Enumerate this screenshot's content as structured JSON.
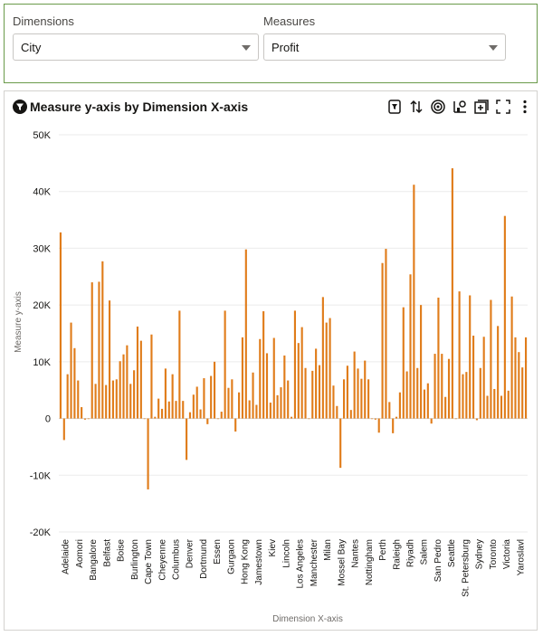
{
  "filters": {
    "dimension": {
      "label": "Dimensions",
      "value": "City"
    },
    "measure": {
      "label": "Measures",
      "value": "Profit"
    }
  },
  "chart_panel": {
    "title": "Measure y-axis by Dimension X-axis",
    "toolbar": [
      "filter-icon",
      "sort-icon",
      "target-icon",
      "chart-type-icon",
      "add-icon",
      "fullscreen-icon",
      "more-icon"
    ]
  },
  "colors": {
    "bar": "#E07C1A",
    "grid": "#ebebeb",
    "axis_text": "#161513",
    "axis_title": "#6f6c69"
  },
  "chart_data": {
    "type": "bar",
    "xlabel": "Dimension X-axis",
    "ylabel": "Measure y-axis",
    "ylim": [
      -20000,
      50000
    ],
    "yticks": [
      -20000,
      -10000,
      0,
      10000,
      20000,
      30000,
      40000,
      50000
    ],
    "ytick_labels": [
      "-20K",
      "-10K",
      "0",
      "10K",
      "20K",
      "30K",
      "40K",
      "50K"
    ],
    "visible_labels": [
      "Adelaide",
      "Aomori",
      "Bangalore",
      "Belfast",
      "Boise",
      "Burlington",
      "Cape Town",
      "Cheyenne",
      "Columbus",
      "Denver",
      "Dortmund",
      "Essen",
      "Gurgaon",
      "Hong Kong",
      "Jamestown",
      "Kiev",
      "Lincoln",
      "Los Angeles",
      "Manchester",
      "Milan",
      "Mossel Bay",
      "Nantes",
      "Nottingham",
      "Perth",
      "Raleigh",
      "Riyadh",
      "Salem",
      "San Pedro",
      "Seattle",
      "St. Petersburg",
      "Sydney",
      "Toronto",
      "Victoria",
      "Yaroslavl"
    ],
    "values": [
      32800,
      -3800,
      7800,
      16900,
      12400,
      6700,
      2000,
      -200,
      0,
      24000,
      6100,
      24100,
      27700,
      5900,
      20800,
      6700,
      6900,
      10100,
      11300,
      12900,
      6100,
      8500,
      16200,
      13700,
      0,
      -12500,
      14800,
      300,
      3500,
      1700,
      8800,
      3000,
      7800,
      3100,
      19000,
      3100,
      -7300,
      1100,
      4200,
      5600,
      1600,
      7100,
      -1000,
      7500,
      10000,
      0,
      1200,
      19000,
      5400,
      6900,
      -2300,
      4600,
      14300,
      29800,
      3200,
      8100,
      2400,
      14000,
      18900,
      11500,
      2800,
      14200,
      4100,
      5500,
      11100,
      6700,
      300,
      19000,
      13300,
      16100,
      8900,
      0,
      8400,
      12300,
      9400,
      21400,
      16900,
      17700,
      5800,
      2200,
      -8700,
      6900,
      9300,
      1500,
      11800,
      8800,
      7000,
      10200,
      6900,
      0,
      -200,
      -2500,
      27400,
      29900,
      2900,
      -2600,
      300,
      4600,
      19600,
      8300,
      25400,
      41200,
      8900,
      20000,
      5100,
      6200,
      -900,
      11400,
      21300,
      11400,
      3800,
      10500,
      44100,
      0,
      22400,
      7800,
      8200,
      21700,
      14600,
      -300,
      8900,
      14400,
      4000,
      20900,
      5200,
      16300,
      4000,
      35700,
      4900,
      21500,
      14300,
      11700,
      9000,
      14300
    ]
  }
}
